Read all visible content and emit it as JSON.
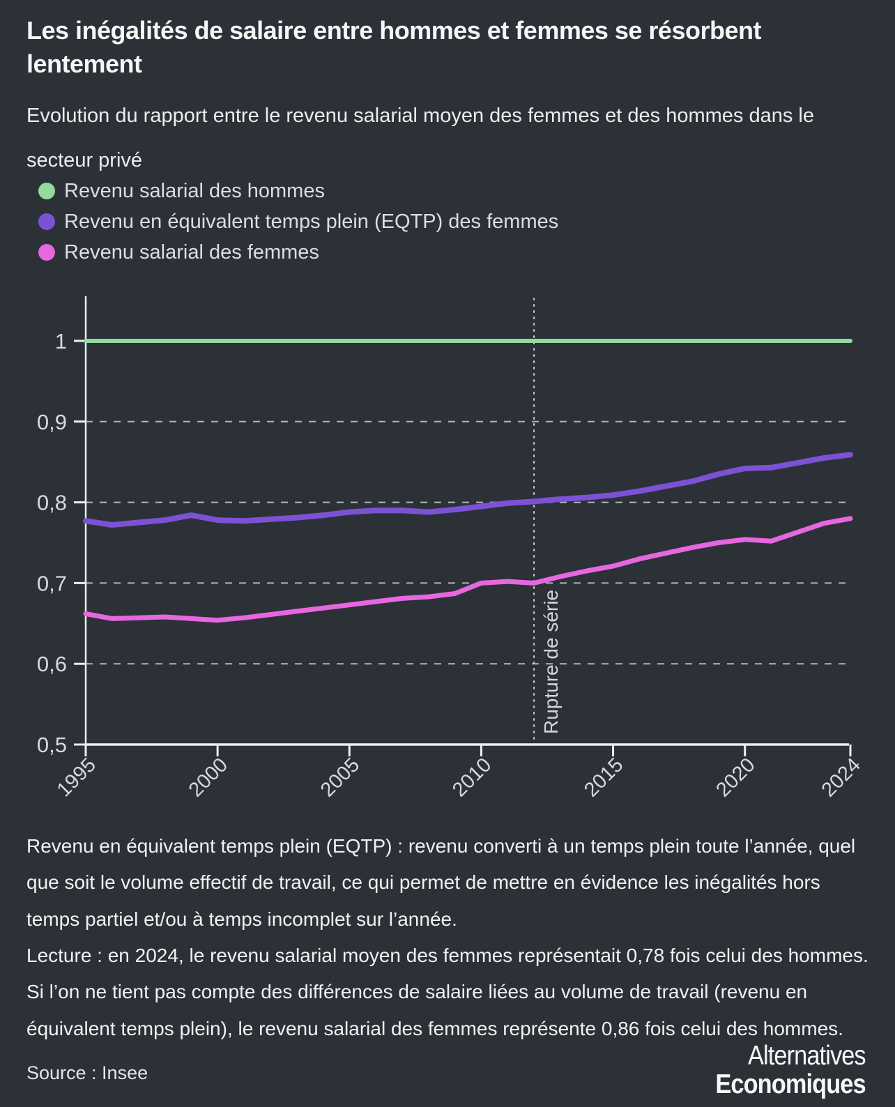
{
  "title": "Les inégalités de salaire entre hommes et femmes se résorbent lentement",
  "subtitle": "Evolution du rapport entre le revenu salarial moyen des femmes et des hommes dans le secteur privé",
  "colors": {
    "background": "#2b3137",
    "axis": "#eceeef",
    "grid": "#c9ced2",
    "tick_text": "#d7dadc",
    "hommes_green": "#93da9b",
    "eqtp_purple": "#7c52d5",
    "salarial_pink": "#e667de"
  },
  "chart_data": {
    "type": "line",
    "title": "Evolution du rapport entre le revenu salarial moyen des femmes et des hommes dans le secteur privé",
    "xlabel": "",
    "ylabel": "",
    "xlim": [
      1995,
      2024
    ],
    "ylim": [
      0.5,
      1.03
    ],
    "grid": "horizontal dashed at 0.6 0.7 0.8 0.9",
    "legend_position": "top-left",
    "x": [
      1995,
      1996,
      1997,
      1998,
      1999,
      2000,
      2001,
      2002,
      2003,
      2004,
      2005,
      2006,
      2007,
      2008,
      2009,
      2010,
      2011,
      2012,
      2013,
      2014,
      2015,
      2016,
      2017,
      2018,
      2019,
      2020,
      2021,
      2022,
      2023,
      2024
    ],
    "xticks": {
      "values": [
        1995,
        2000,
        2005,
        2010,
        2015,
        2020,
        2024
      ],
      "labels": [
        "1995",
        "2000",
        "2005",
        "2010",
        "2015",
        "2020",
        "2024"
      ]
    },
    "yticks": [
      {
        "label": "1",
        "value": 1.0,
        "gridline": false
      },
      {
        "label": "0,9",
        "value": 0.9,
        "gridline": true
      },
      {
        "label": "0,8",
        "value": 0.8,
        "gridline": true
      },
      {
        "label": "0,7",
        "value": 0.7,
        "gridline": true
      },
      {
        "label": "0,6",
        "value": 0.6,
        "gridline": true
      },
      {
        "label": "0,5",
        "value": 0.5,
        "gridline": false
      }
    ],
    "series": [
      {
        "key": "hommes",
        "name": "Revenu salarial des hommes",
        "color": "#93da9b",
        "values": [
          1,
          1,
          1,
          1,
          1,
          1,
          1,
          1,
          1,
          1,
          1,
          1,
          1,
          1,
          1,
          1,
          1,
          1,
          1,
          1,
          1,
          1,
          1,
          1,
          1,
          1,
          1,
          1,
          1,
          1
        ]
      },
      {
        "key": "eqtp-femmes",
        "name": "Revenu en équivalent temps plein (EQTP) des femmes",
        "color": "#7c52d5",
        "values": [
          0.777,
          0.772,
          0.775,
          0.778,
          0.784,
          0.778,
          0.777,
          0.779,
          0.781,
          0.784,
          0.788,
          0.79,
          0.79,
          0.788,
          0.791,
          0.795,
          0.799,
          0.801,
          0.804,
          0.806,
          0.809,
          0.814,
          0.82,
          0.826,
          0.835,
          0.842,
          0.843,
          0.849,
          0.855,
          0.859
        ]
      },
      {
        "key": "salarial-femmes",
        "name": "Revenu salarial des femmes",
        "color": "#e667de",
        "values": [
          0.662,
          0.656,
          0.657,
          0.658,
          0.656,
          0.654,
          0.657,
          0.661,
          0.665,
          0.669,
          0.673,
          0.677,
          0.681,
          0.683,
          0.687,
          0.7,
          0.702,
          0.7,
          0.708,
          0.715,
          0.721,
          0.73,
          0.737,
          0.744,
          0.75,
          0.754,
          0.752,
          0.763,
          0.774,
          0.78
        ]
      }
    ],
    "annotation": {
      "label": "Rupture de série",
      "year": 2012
    }
  },
  "notes": {
    "definition": "Revenu en équivalent temps plein (EQTP) : revenu converti à un temps plein toute l’année, quel que soit le volume effectif de travail, ce qui permet de mettre en évidence les inégalités hors temps partiel et/ou à temps incomplet sur l’année.",
    "lecture": "Lecture : en 2024, le revenu salarial moyen des femmes représentait 0,78 fois celui des hommes. Si l’on ne tient pas compte des différences de salaire liées au volume de travail (revenu en équivalent temps plein), le revenu salarial des femmes représente 0,86 fois celui des hommes."
  },
  "source": "Source : Insee",
  "logo": {
    "line1": "Alternatives",
    "line2": "Economiques"
  }
}
